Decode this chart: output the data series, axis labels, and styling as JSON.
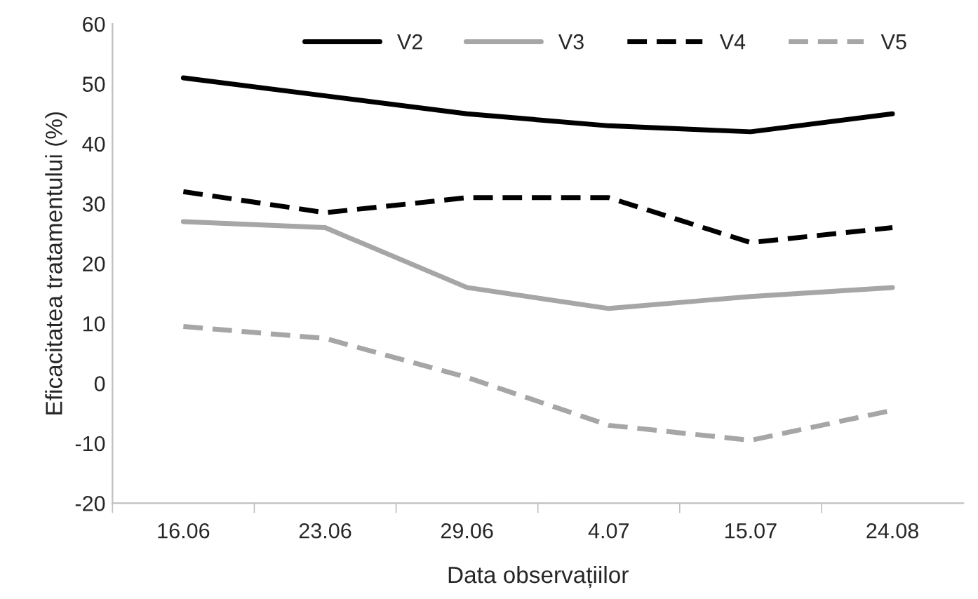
{
  "chart_data": {
    "type": "line",
    "xlabel": "Data observațiilor",
    "ylabel": "Eficacitatea tratamentului (%)",
    "categories": [
      "16.06",
      "23.06",
      "29.06",
      "4.07",
      "15.07",
      "24.08"
    ],
    "series": [
      {
        "name": "V2",
        "color": "#000000",
        "line_style": "solid",
        "values": [
          51,
          48,
          45,
          43,
          42,
          45
        ]
      },
      {
        "name": "V3",
        "color": "#a6a6a6",
        "line_style": "solid",
        "values": [
          27,
          26,
          16,
          12.5,
          14.5,
          16
        ]
      },
      {
        "name": "V4",
        "color": "#000000",
        "line_style": "dashed",
        "values": [
          32,
          28.5,
          31,
          31,
          23.5,
          26
        ]
      },
      {
        "name": "V5",
        "color": "#a6a6a6",
        "line_style": "dashed",
        "values": [
          9.5,
          7.5,
          1,
          -7,
          -9.5,
          -4.5
        ]
      }
    ],
    "ylim": [
      -20,
      60
    ],
    "yticks": [
      -20,
      -10,
      0,
      10,
      20,
      30,
      40,
      50,
      60
    ],
    "grid": false,
    "legend": "top",
    "marker": "none"
  }
}
